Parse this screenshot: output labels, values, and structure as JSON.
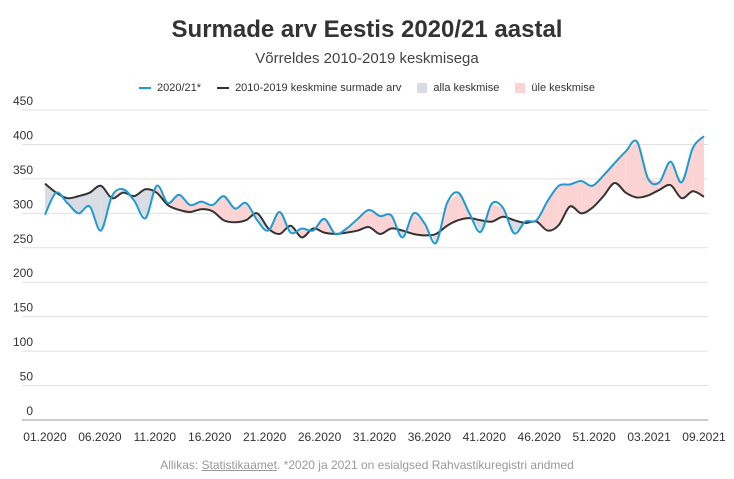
{
  "title": "Surmade arv Eestis 2020/21 aastal",
  "subtitle": "Võrreldes 2010-2019 keskmisega",
  "legend": {
    "current": "2020/21*",
    "average": "2010-2019 keskmine surmade arv",
    "below": "alla keskmise",
    "above": "üle keskmise"
  },
  "source": {
    "prefix": "Allikas: ",
    "link": "Statistikaamet",
    "suffix": ". *2020 ja 2021 on esialgsed Rahvastikuregistri andmed"
  },
  "colors": {
    "current": "#1d9bd1",
    "average": "#333333",
    "below": "#d9dde3",
    "above": "#fbd3d3",
    "grid": "#e0e0e0"
  },
  "chart_data": {
    "type": "line",
    "ylim": [
      0,
      450
    ],
    "yticks": [
      0,
      50,
      100,
      150,
      200,
      250,
      300,
      350,
      400,
      450
    ],
    "xtick_labels": [
      "01.2020",
      "06.2020",
      "11.2020",
      "16.2020",
      "21.2020",
      "26.2020",
      "31.2020",
      "36.2020",
      "41.2020",
      "46.2020",
      "51.2020",
      "03.2021",
      "09.2021"
    ],
    "grid": "horizontal",
    "legend_position": "top",
    "series": [
      {
        "name": "2020/21*",
        "values": [
          298,
          330,
          315,
          300,
          310,
          275,
          325,
          335,
          318,
          293,
          340,
          315,
          327,
          312,
          317,
          312,
          325,
          307,
          315,
          290,
          275,
          302,
          272,
          278,
          275,
          292,
          270,
          278,
          292,
          305,
          296,
          297,
          265,
          300,
          285,
          257,
          315,
          330,
          300,
          273,
          314,
          308,
          271,
          288,
          290,
          318,
          340,
          342,
          347,
          340,
          355,
          373,
          390,
          404,
          350,
          345,
          375,
          345,
          395,
          412
        ]
      },
      {
        "name": "2010-2019 keskmine surmade arv",
        "values": [
          343,
          330,
          322,
          325,
          330,
          340,
          322,
          330,
          325,
          335,
          330,
          312,
          305,
          302,
          306,
          303,
          290,
          287,
          290,
          300,
          278,
          270,
          282,
          265,
          278,
          272,
          270,
          272,
          275,
          280,
          270,
          278,
          275,
          270,
          268,
          270,
          282,
          290,
          293,
          290,
          288,
          295,
          290,
          286,
          288,
          275,
          283,
          310,
          300,
          308,
          325,
          344,
          330,
          323,
          326,
          334,
          341,
          322,
          332,
          324
        ]
      }
    ]
  }
}
